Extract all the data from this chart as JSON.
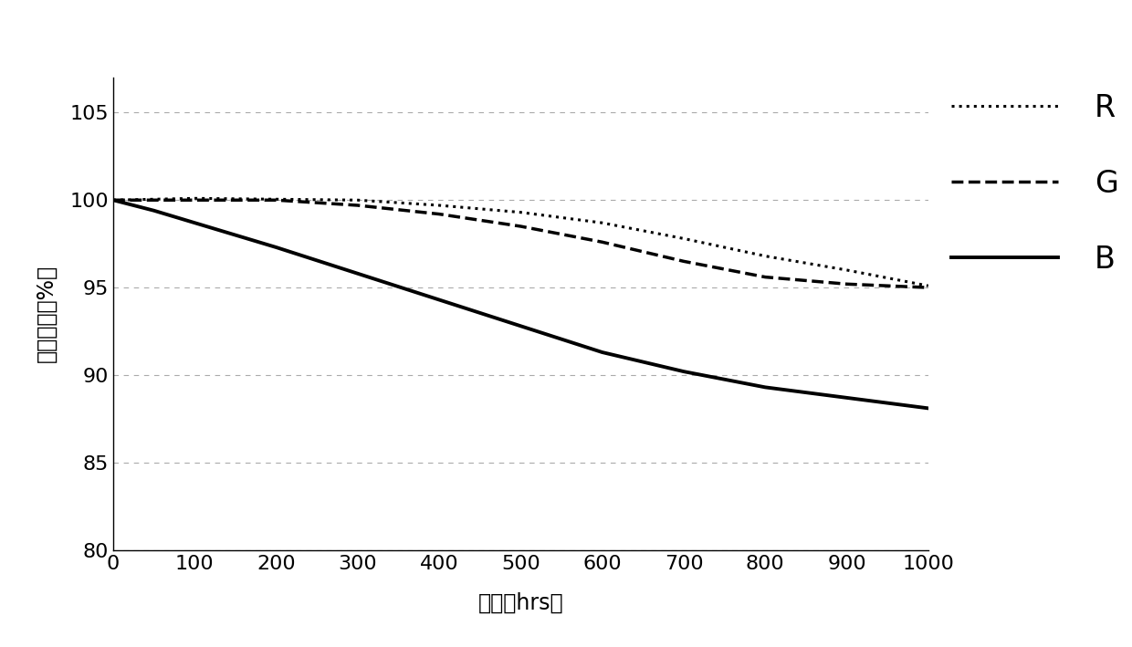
{
  "title": "",
  "xlabel": "时间（hrs）",
  "ylabel": "亮度比例（%）",
  "xlim": [
    0,
    1000
  ],
  "ylim": [
    80,
    107
  ],
  "xticks": [
    0,
    100,
    200,
    300,
    400,
    500,
    600,
    700,
    800,
    900,
    1000
  ],
  "yticks": [
    80,
    85,
    90,
    95,
    100,
    105
  ],
  "grid_color": "#aaaaaa",
  "background_color": "#ffffff",
  "series": {
    "R": {
      "x": [
        0,
        50,
        100,
        200,
        300,
        400,
        500,
        600,
        700,
        800,
        900,
        1000
      ],
      "y": [
        100.0,
        100.05,
        100.1,
        100.05,
        100.0,
        99.7,
        99.3,
        98.7,
        97.8,
        96.8,
        96.0,
        95.1
      ],
      "linestyle": "dotted",
      "linewidth": 2.2,
      "color": "#000000"
    },
    "G": {
      "x": [
        0,
        50,
        100,
        200,
        300,
        400,
        500,
        600,
        700,
        800,
        900,
        1000
      ],
      "y": [
        100.0,
        100.0,
        100.0,
        100.0,
        99.7,
        99.2,
        98.5,
        97.6,
        96.5,
        95.6,
        95.2,
        95.0
      ],
      "linestyle": "dashed",
      "linewidth": 2.5,
      "color": "#000000"
    },
    "B": {
      "x": [
        0,
        50,
        100,
        200,
        300,
        400,
        500,
        600,
        700,
        800,
        900,
        1000
      ],
      "y": [
        100.0,
        99.4,
        98.7,
        97.3,
        95.8,
        94.3,
        92.8,
        91.3,
        90.2,
        89.3,
        88.7,
        88.1
      ],
      "linestyle": "solid",
      "linewidth": 2.8,
      "color": "#000000"
    }
  },
  "legend_labels": [
    "R",
    "G",
    "B"
  ],
  "legend_linestyles": [
    "dotted",
    "dashed",
    "solid"
  ],
  "legend_linewidths": [
    2.2,
    2.5,
    2.8
  ],
  "label_fontsize": 17,
  "tick_fontsize": 16,
  "legend_fontsize": 24
}
